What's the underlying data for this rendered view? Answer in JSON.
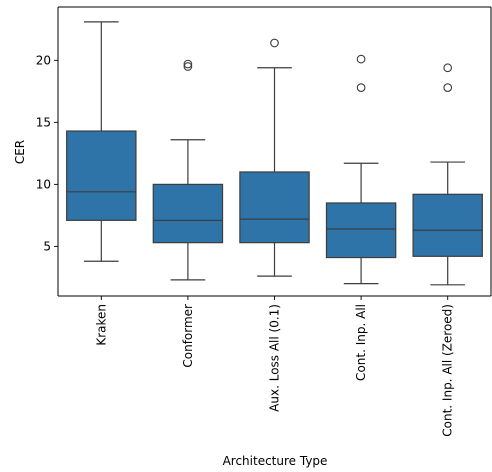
{
  "chart_data": {
    "type": "box",
    "xlabel": "Architecture Type",
    "ylabel": "CER",
    "ylim": [
      1.0,
      24.3
    ],
    "yticks": [
      5,
      10,
      15,
      20
    ],
    "box_color": "#2e74a8",
    "line_color": "#3d3d3d",
    "grid": false,
    "categories": [
      "Kraken",
      "Conformer",
      "Aux. Loss All (0.1)",
      "Cont. Inp. All",
      "Cont. Inp. All (Zeroed)"
    ],
    "boxes": [
      {
        "whisker_low": 3.8,
        "q1": 7.1,
        "median": 9.4,
        "q3": 14.3,
        "whisker_high": 23.1,
        "outliers": []
      },
      {
        "whisker_low": 2.3,
        "q1": 5.3,
        "median": 7.1,
        "q3": 10.0,
        "whisker_high": 13.6,
        "outliers": [
          19.5,
          19.7
        ]
      },
      {
        "whisker_low": 2.6,
        "q1": 5.3,
        "median": 7.2,
        "q3": 11.0,
        "whisker_high": 19.4,
        "outliers": [
          21.4
        ]
      },
      {
        "whisker_low": 2.0,
        "q1": 4.1,
        "median": 6.4,
        "q3": 8.5,
        "whisker_high": 11.7,
        "outliers": [
          17.8,
          20.1
        ]
      },
      {
        "whisker_low": 1.9,
        "q1": 4.2,
        "median": 6.3,
        "q3": 9.2,
        "whisker_high": 11.8,
        "outliers": [
          17.8,
          19.4
        ]
      }
    ]
  }
}
